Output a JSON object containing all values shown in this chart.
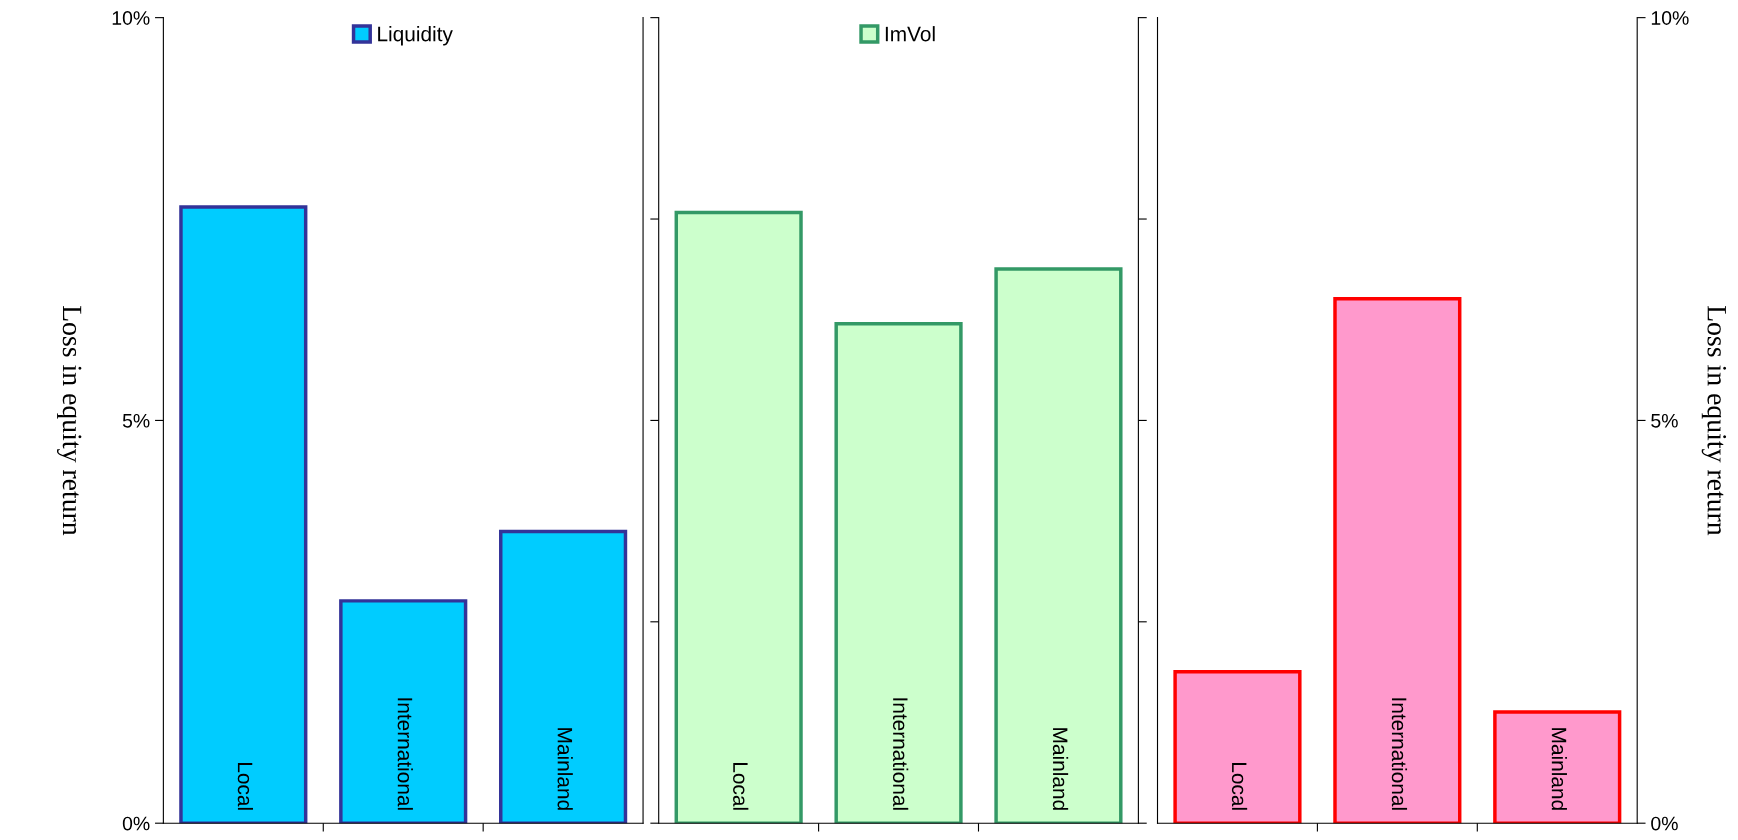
{
  "chart_data": [
    {
      "type": "bar",
      "categories": [
        "Local",
        "International",
        "Mainland"
      ],
      "series": [
        {
          "name": "Liquidity",
          "color": "#00ccff",
          "values": [
            7.65,
            2.76,
            3.62
          ]
        }
      ],
      "ylim": [
        0,
        10
      ],
      "yticks": [
        {
          "value": 0,
          "label": "0%"
        },
        {
          "value": 5,
          "label": "5%"
        },
        {
          "value": 10,
          "label": "10%"
        }
      ],
      "ylabel": "Loss in equity return",
      "legend": "top"
    },
    {
      "type": "bar",
      "categories": [
        "Local",
        "International",
        "Mainland"
      ],
      "series": [
        {
          "name": "ImVol",
          "color": "#ccffcc",
          "values": [
            7.58,
            6.2,
            6.88
          ]
        }
      ],
      "ylim": [
        0,
        10
      ],
      "yticks": [
        {
          "value": 0,
          "label": null
        },
        {
          "value": 2.5,
          "label": null
        },
        {
          "value": 5,
          "label": null
        },
        {
          "value": 7.5,
          "label": null
        },
        {
          "value": 10,
          "label": null
        }
      ],
      "tick_labels": "x",
      "legend": "top"
    },
    {
      "type": "bar",
      "categories": [
        "Local",
        "International",
        "Mainland"
      ],
      "series": [
        {
          "color": "#ff99cc",
          "values": [
            1.88,
            6.51,
            1.38
          ]
        }
      ],
      "ylim": [
        0,
        10
      ],
      "yticks": [
        {
          "value": 0,
          "label": "0%"
        },
        {
          "value": 5,
          "label": "5%"
        },
        {
          "value": 10,
          "label": "10%"
        }
      ],
      "ylabel": "Loss in equity return"
    }
  ]
}
